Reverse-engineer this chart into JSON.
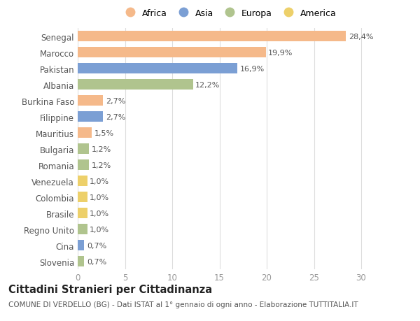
{
  "countries": [
    "Slovenia",
    "Cina",
    "Regno Unito",
    "Brasile",
    "Colombia",
    "Venezuela",
    "Romania",
    "Bulgaria",
    "Mauritius",
    "Filippine",
    "Burkina Faso",
    "Albania",
    "Pakistan",
    "Marocco",
    "Senegal"
  ],
  "values": [
    0.7,
    0.7,
    1.0,
    1.0,
    1.0,
    1.0,
    1.2,
    1.2,
    1.5,
    2.7,
    2.7,
    12.2,
    16.9,
    19.9,
    28.4
  ],
  "labels": [
    "0,7%",
    "0,7%",
    "1,0%",
    "1,0%",
    "1,0%",
    "1,0%",
    "1,2%",
    "1,2%",
    "1,5%",
    "2,7%",
    "2,7%",
    "12,2%",
    "16,9%",
    "19,9%",
    "28,4%"
  ],
  "continents": [
    "Europa",
    "Asia",
    "Europa",
    "America",
    "America",
    "America",
    "Europa",
    "Europa",
    "Africa",
    "Asia",
    "Africa",
    "Europa",
    "Asia",
    "Africa",
    "Africa"
  ],
  "colors": {
    "Africa": "#F5B98A",
    "Asia": "#7B9FD4",
    "Europa": "#B0C48E",
    "America": "#EDD06A"
  },
  "legend_order": [
    "Africa",
    "Asia",
    "Europa",
    "America"
  ],
  "xlim": [
    0,
    32
  ],
  "xticks": [
    0,
    5,
    10,
    15,
    20,
    25,
    30
  ],
  "title": "Cittadini Stranieri per Cittadinanza",
  "subtitle": "COMUNE DI VERDELLO (BG) - Dati ISTAT al 1° gennaio di ogni anno - Elaborazione TUTTITALIA.IT",
  "bg_color": "#FFFFFF",
  "grid_color": "#DDDDDD",
  "bar_height": 0.65,
  "label_fontsize": 8.0,
  "title_fontsize": 10.5,
  "subtitle_fontsize": 7.5
}
